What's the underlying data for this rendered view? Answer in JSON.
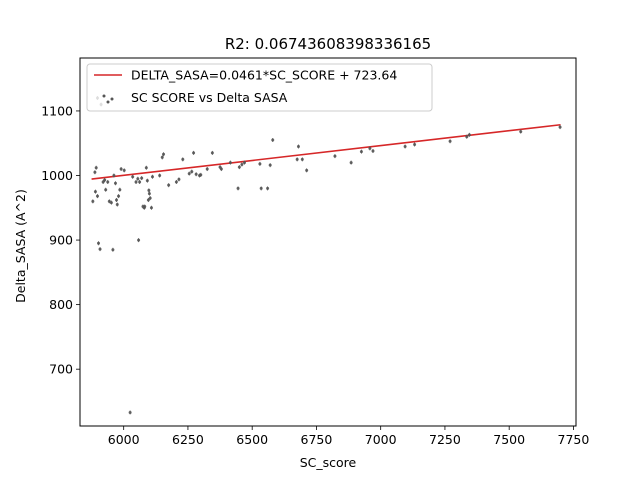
{
  "chart_data": {
    "type": "scatter",
    "title": "R2: 0.06743608398336165",
    "xlabel": "SC_score",
    "ylabel": "Delta_SASA (A^2)",
    "xlim": [
      5830,
      7760
    ],
    "ylim": [
      612,
      1182
    ],
    "xticks": [
      6000,
      6250,
      6500,
      6750,
      7000,
      7250,
      7500,
      7750
    ],
    "yticks": [
      700,
      800,
      900,
      1000,
      1100
    ],
    "grid": false,
    "legend_position": "upper-left",
    "fit_line": {
      "label": "DELTA_SASA=0.0461*SC_SCORE + 723.64",
      "slope": 0.0461,
      "intercept": 723.64,
      "x_range": [
        5875,
        7700
      ],
      "color": "#d62728"
    },
    "series": [
      {
        "name": "SC SCORE vs Delta SASA",
        "color": "#555555",
        "points": [
          [
            5880,
            960
          ],
          [
            5888,
            1005
          ],
          [
            5893,
            1012
          ],
          [
            5890,
            975
          ],
          [
            5898,
            968
          ],
          [
            5902,
            895
          ],
          [
            5908,
            886
          ],
          [
            5898,
            1120
          ],
          [
            5912,
            1110
          ],
          [
            5920,
            990
          ],
          [
            5926,
            993
          ],
          [
            5930,
            978
          ],
          [
            5938,
            990
          ],
          [
            5944,
            960
          ],
          [
            5952,
            958
          ],
          [
            5958,
            885
          ],
          [
            5962,
            1000
          ],
          [
            5968,
            988
          ],
          [
            5972,
            962
          ],
          [
            5975,
            955
          ],
          [
            5980,
            968
          ],
          [
            5985,
            978
          ],
          [
            5990,
            1010
          ],
          [
            6002,
            1008
          ],
          [
            6025,
            633
          ],
          [
            6035,
            998
          ],
          [
            6048,
            990
          ],
          [
            6055,
            995
          ],
          [
            6058,
            900
          ],
          [
            6062,
            990
          ],
          [
            6070,
            996
          ],
          [
            6075,
            952
          ],
          [
            6080,
            950
          ],
          [
            6082,
            952
          ],
          [
            6088,
            1012
          ],
          [
            6092,
            992
          ],
          [
            6096,
            962
          ],
          [
            6098,
            977
          ],
          [
            6100,
            972
          ],
          [
            6103,
            965
          ],
          [
            6108,
            950
          ],
          [
            6112,
            998
          ],
          [
            6140,
            1000
          ],
          [
            6150,
            1028
          ],
          [
            6155,
            1033
          ],
          [
            6175,
            985
          ],
          [
            6205,
            990
          ],
          [
            6215,
            994
          ],
          [
            6230,
            1025
          ],
          [
            6255,
            1003
          ],
          [
            6265,
            1006
          ],
          [
            6272,
            1035
          ],
          [
            6282,
            1002
          ],
          [
            6295,
            1000
          ],
          [
            6300,
            1001
          ],
          [
            6325,
            1010
          ],
          [
            6345,
            1035
          ],
          [
            6375,
            1013
          ],
          [
            6380,
            1010
          ],
          [
            6415,
            1020
          ],
          [
            6445,
            980
          ],
          [
            6450,
            1013
          ],
          [
            6460,
            1017
          ],
          [
            6470,
            1020
          ],
          [
            6530,
            1018
          ],
          [
            6535,
            980
          ],
          [
            6560,
            980
          ],
          [
            6570,
            1016
          ],
          [
            6580,
            1055
          ],
          [
            6675,
            1025
          ],
          [
            6680,
            1045
          ],
          [
            6695,
            1025
          ],
          [
            6712,
            1008
          ],
          [
            6822,
            1030
          ],
          [
            6885,
            1020
          ],
          [
            6925,
            1037
          ],
          [
            6958,
            1042
          ],
          [
            6970,
            1038
          ],
          [
            7095,
            1045
          ],
          [
            7132,
            1048
          ],
          [
            7270,
            1053
          ],
          [
            7335,
            1060
          ],
          [
            7345,
            1063
          ],
          [
            7545,
            1068
          ],
          [
            7698,
            1075
          ]
        ]
      }
    ]
  }
}
